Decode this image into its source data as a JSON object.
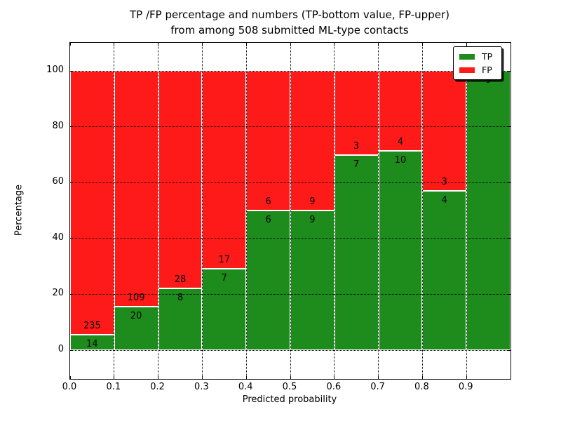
{
  "figure": {
    "title_line1": "TP /FP percentage and numbers (TP-bottom value, FP-upper)",
    "title_line2": "from among 508 submitted ML-type contacts",
    "xlabel": "Predicted probability",
    "ylabel": "Percentage"
  },
  "legend": {
    "position": "upper right",
    "items": [
      {
        "label": "TP",
        "color": "#1d8c1d"
      },
      {
        "label": "FP",
        "color": "#ff1a1a"
      }
    ]
  },
  "chart_data": {
    "type": "bar",
    "stacked": true,
    "normalized": "percent_of_bin",
    "title": "TP /FP percentage and numbers (TP-bottom value, FP-upper) from among 508 submitted ML-type contacts",
    "xlabel": "Predicted probability",
    "ylabel": "Percentage",
    "total_contacts": 508,
    "bin_edges": [
      0.0,
      0.1,
      0.2,
      0.3,
      0.4,
      0.5,
      0.6,
      0.7,
      0.8,
      0.9,
      1.0
    ],
    "x_tick_labels": [
      "0.0",
      "0.1",
      "0.2",
      "0.3",
      "0.4",
      "0.5",
      "0.6",
      "0.7",
      "0.8",
      "0.9"
    ],
    "y_ticks": [
      0,
      20,
      40,
      60,
      80,
      100
    ],
    "y_tick_labels": [
      "0",
      "20",
      "40",
      "60",
      "80",
      "100"
    ],
    "xlim": [
      0.0,
      1.0
    ],
    "ylim": [
      -10.3,
      110.1
    ],
    "grid": true,
    "grid_style": "dotted",
    "series": [
      {
        "name": "TP",
        "color": "#1d8c1d",
        "counts": [
          14,
          20,
          8,
          7,
          6,
          9,
          7,
          10,
          4,
          9
        ]
      },
      {
        "name": "FP",
        "color": "#ff1a1a",
        "counts": [
          235,
          109,
          28,
          17,
          6,
          9,
          3,
          4,
          3,
          0
        ]
      }
    ],
    "tp_percentages": [
      5.62,
      15.5,
      22.22,
      29.17,
      50.0,
      50.0,
      70.0,
      71.43,
      57.14,
      100.0
    ],
    "fp_percentages": [
      94.38,
      84.5,
      77.78,
      70.83,
      50.0,
      50.0,
      30.0,
      28.57,
      42.86,
      0.0
    ]
  }
}
